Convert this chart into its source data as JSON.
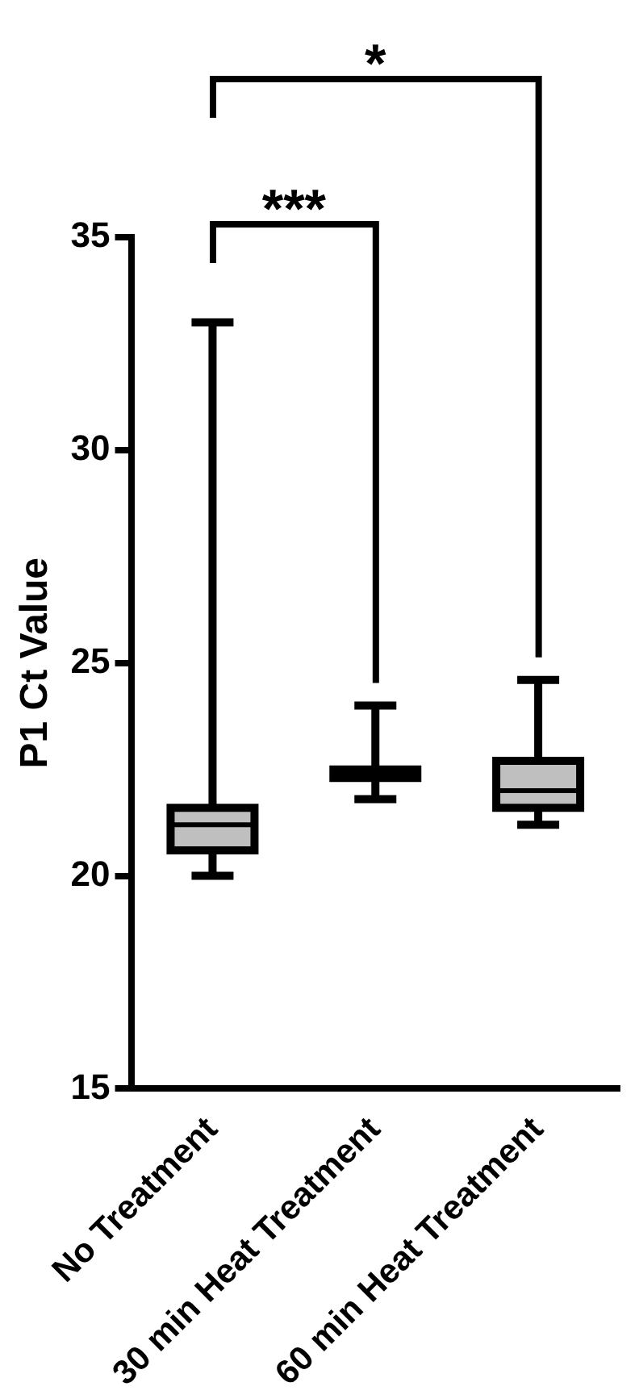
{
  "chart_data": {
    "type": "box",
    "ylabel": "P1 Ct Value",
    "categories": [
      "No Treatment",
      "30 min Heat Treatment",
      "60 min Heat Treatment"
    ],
    "color": "#bfbfbf",
    "boxes": [
      {
        "low": 20.0,
        "q1": 20.6,
        "median": 21.2,
        "q3": 21.6,
        "high": 33.0
      },
      {
        "low": 21.8,
        "q1": 22.3,
        "median": 22.4,
        "q3": 22.5,
        "high": 24.0
      },
      {
        "low": 21.2,
        "q1": 21.6,
        "median": 22.0,
        "q3": 22.7,
        "high": 24.6
      }
    ],
    "ylim": [
      15,
      35
    ],
    "yticks": [
      15,
      20,
      25,
      30,
      35
    ],
    "grid": false,
    "legend": false,
    "annotations": [
      "***",
      "*"
    ]
  }
}
